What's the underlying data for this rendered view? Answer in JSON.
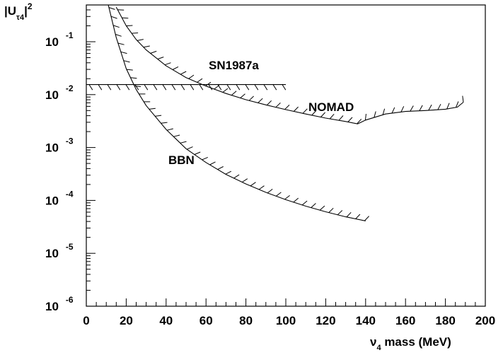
{
  "chart_data": {
    "type": "line",
    "xlabel": {
      "main": "ν",
      "sub": "4",
      "rest": " mass (MeV)"
    },
    "ylabel": {
      "open": "|U",
      "sub": "τ4",
      "close": "|",
      "sup": "2"
    },
    "xlim": [
      0,
      200
    ],
    "ylim": [
      1e-06,
      0.5
    ],
    "y_scale": "log",
    "x_ticks": [
      "0",
      "20",
      "40",
      "60",
      "80",
      "100",
      "120",
      "140",
      "160",
      "180",
      "200"
    ],
    "y_ticks": [
      {
        "base": "10",
        "exp": "-1"
      },
      {
        "base": "10",
        "exp": "-2"
      },
      {
        "base": "10",
        "exp": "-3"
      },
      {
        "base": "10",
        "exp": "-4"
      },
      {
        "base": "10",
        "exp": "-5"
      },
      {
        "base": "10",
        "exp": "-6"
      }
    ],
    "grid": false,
    "series": [
      {
        "name": "NOMAD",
        "x": [
          15,
          20,
          25,
          30,
          40,
          50,
          60,
          70,
          80,
          90,
          100,
          110,
          120,
          130,
          136,
          140,
          150,
          160,
          170,
          180,
          186,
          189
        ],
        "y": [
          0.45,
          0.2,
          0.11,
          0.07,
          0.035,
          0.021,
          0.0145,
          0.0105,
          0.008,
          0.0064,
          0.0052,
          0.0043,
          0.0036,
          0.0031,
          0.0028,
          0.0033,
          0.0043,
          0.0048,
          0.005,
          0.0053,
          0.0058,
          0.0072
        ]
      },
      {
        "name": "BBN",
        "x": [
          11,
          15,
          20,
          25,
          30,
          40,
          50,
          60,
          70,
          80,
          90,
          100,
          110,
          120,
          130,
          140
        ],
        "y": [
          0.5,
          0.12,
          0.031,
          0.0125,
          0.0062,
          0.0022,
          0.00095,
          0.00052,
          0.00031,
          0.000205,
          0.000142,
          0.000103,
          7.8e-05,
          6.1e-05,
          4.9e-05,
          4.1e-05
        ]
      },
      {
        "name": "SN1987a",
        "x": [
          0,
          100
        ],
        "y": [
          0.0155,
          0.0155
        ]
      }
    ]
  }
}
